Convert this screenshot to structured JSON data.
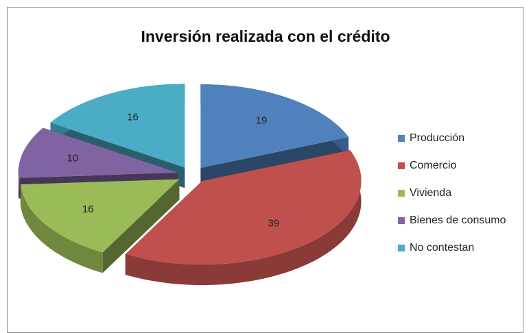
{
  "chart_data": {
    "type": "pie",
    "title": "Inversión realizada con el crédito",
    "categories": [
      "Producción",
      "Comercio",
      "Vivienda",
      "Bienes de consumo",
      "No contestan"
    ],
    "values": [
      19,
      39,
      16,
      10,
      16
    ],
    "colors": [
      "#4f81bd",
      "#c0504d",
      "#9bbb59",
      "#8064a2",
      "#4bacc6"
    ],
    "legend": "right"
  }
}
